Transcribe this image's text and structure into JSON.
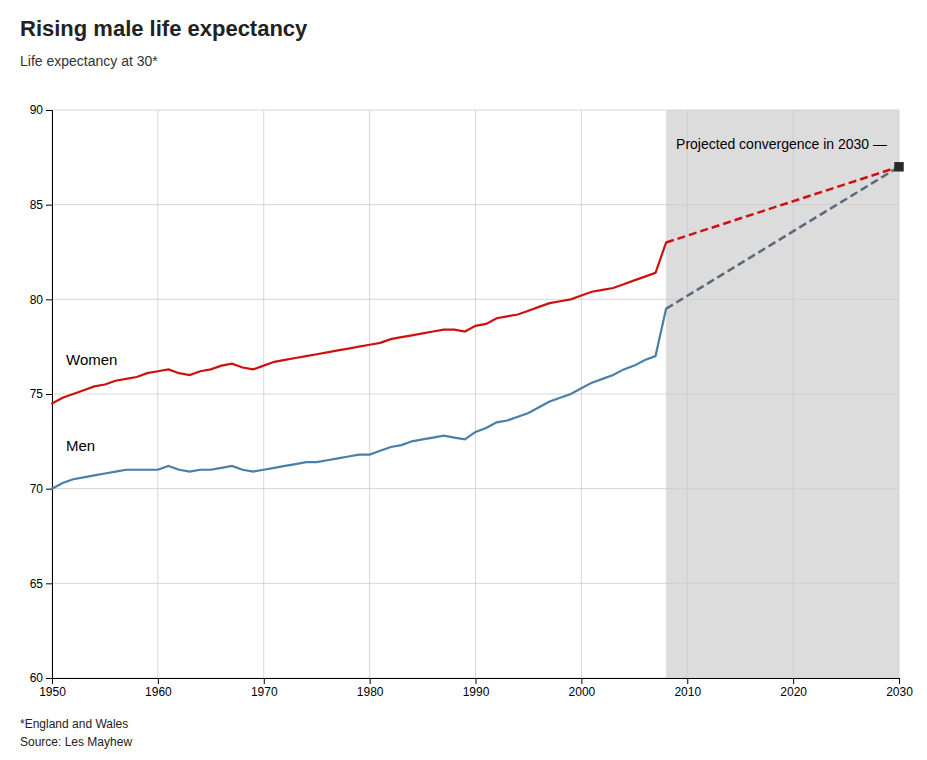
{
  "chart_data": {
    "type": "line",
    "title": "Rising male life expectancy",
    "subtitle": "Life expectancy at 30*",
    "footnote": "*England and Wales",
    "source": "Source: Les Mayhew",
    "xlim": [
      1950,
      2030
    ],
    "ylim": [
      60,
      90
    ],
    "xticks": [
      1950,
      1960,
      1970,
      1980,
      1990,
      2000,
      2010,
      2020,
      2030
    ],
    "yticks": [
      60,
      65,
      70,
      75,
      80,
      85,
      90
    ],
    "grid": true,
    "annotations": [
      {
        "text": "Projected convergence in 2030 —"
      }
    ],
    "series": [
      {
        "name": "Women",
        "color": "#cc1111",
        "line_style": "solid",
        "x": [
          1950,
          1951,
          1952,
          1953,
          1954,
          1955,
          1956,
          1957,
          1958,
          1959,
          1960,
          1961,
          1962,
          1963,
          1964,
          1965,
          1966,
          1967,
          1968,
          1969,
          1970,
          1971,
          1972,
          1973,
          1974,
          1975,
          1976,
          1977,
          1978,
          1979,
          1980,
          1981,
          1982,
          1983,
          1984,
          1985,
          1986,
          1987,
          1988,
          1989,
          1990,
          1991,
          1992,
          1993,
          1994,
          1995,
          1996,
          1997,
          1998,
          1999,
          2000,
          2001,
          2002,
          2003,
          2004,
          2005,
          2006,
          2007,
          2008
        ],
        "values": [
          74.5,
          74.8,
          75.0,
          75.2,
          75.4,
          75.5,
          75.7,
          75.8,
          75.9,
          76.1,
          76.2,
          76.3,
          76.1,
          76.0,
          76.2,
          76.3,
          76.5,
          76.6,
          76.4,
          76.3,
          76.5,
          76.7,
          76.8,
          76.9,
          77.0,
          77.1,
          77.2,
          77.3,
          77.4,
          77.5,
          77.6,
          77.7,
          77.9,
          78.0,
          78.1,
          78.2,
          78.3,
          78.4,
          78.4,
          78.3,
          78.6,
          78.7,
          79.0,
          79.1,
          79.2,
          79.4,
          79.6,
          79.8,
          79.9,
          80.0,
          80.2,
          80.4,
          80.5,
          80.6,
          80.8,
          81.0,
          81.2,
          81.4,
          83.0
        ]
      },
      {
        "name": "Men",
        "color": "#4a7fa5",
        "line_style": "solid",
        "x": [
          1950,
          1951,
          1952,
          1953,
          1954,
          1955,
          1956,
          1957,
          1958,
          1959,
          1960,
          1961,
          1962,
          1963,
          1964,
          1965,
          1966,
          1967,
          1968,
          1969,
          1970,
          1971,
          1972,
          1973,
          1974,
          1975,
          1976,
          1977,
          1978,
          1979,
          1980,
          1981,
          1982,
          1983,
          1984,
          1985,
          1986,
          1987,
          1988,
          1989,
          1990,
          1991,
          1992,
          1993,
          1994,
          1995,
          1996,
          1997,
          1998,
          1999,
          2000,
          2001,
          2002,
          2003,
          2004,
          2005,
          2006,
          2007,
          2008
        ],
        "values": [
          70.0,
          70.3,
          70.5,
          70.6,
          70.7,
          70.8,
          70.9,
          71.0,
          71.0,
          71.0,
          71.0,
          71.2,
          71.0,
          70.9,
          71.0,
          71.0,
          71.1,
          71.2,
          71.0,
          70.9,
          71.0,
          71.1,
          71.2,
          71.3,
          71.4,
          71.4,
          71.5,
          71.6,
          71.7,
          71.8,
          71.8,
          72.0,
          72.2,
          72.3,
          72.5,
          72.6,
          72.7,
          72.8,
          72.7,
          72.6,
          73.0,
          73.2,
          73.5,
          73.6,
          73.8,
          74.0,
          74.3,
          74.6,
          74.8,
          75.0,
          75.3,
          75.6,
          75.8,
          76.0,
          76.3,
          76.5,
          76.8,
          77.0,
          79.5
        ]
      },
      {
        "color": "#cc1111",
        "line_style": "dashed",
        "x": [
          2008,
          2030
        ],
        "values": [
          83.0,
          87.0
        ]
      },
      {
        "color": "#5a6a7a",
        "line_style": "dashed",
        "x": [
          2008,
          2030
        ],
        "values": [
          79.5,
          87.0
        ]
      },
      {
        "type": "scatter",
        "marker": "square",
        "color": "#2a2a2a",
        "x": [
          2030
        ],
        "values": [
          87.0
        ]
      }
    ]
  }
}
